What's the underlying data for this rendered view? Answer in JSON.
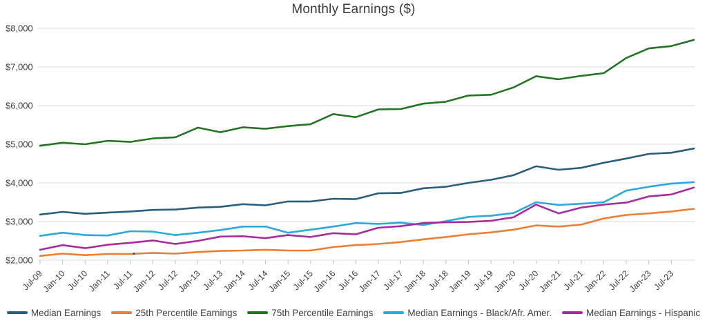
{
  "colors": {
    "background": "#FFFFFF",
    "gridline": "#D9D9D9",
    "tick": "#BFBFBF",
    "axis_text": "#404040",
    "title_text": "#3A3A3A"
  },
  "chart_data": {
    "type": "line",
    "title": "Monthly Earnings ($)",
    "xlabel": "",
    "ylabel": "",
    "ylim": [
      2000,
      8000
    ],
    "grid": "horizontal",
    "legend_position": "bottom",
    "y_ticks": [
      {
        "value": 2000,
        "label": "$2,000"
      },
      {
        "value": 3000,
        "label": "$3,000"
      },
      {
        "value": 4000,
        "label": "$4,000"
      },
      {
        "value": 5000,
        "label": "$5,000"
      },
      {
        "value": 6000,
        "label": "$6,000"
      },
      {
        "value": 7000,
        "label": "$7,000"
      },
      {
        "value": 8000,
        "label": "$8,000"
      }
    ],
    "x_tick_labels": [
      "Jul-09",
      "Jan-10",
      "Jul-10",
      "Jan-11",
      "Jul-11",
      "Jan-12",
      "Jul-12",
      "Jan-13",
      "Jul-13",
      "Jan-14",
      "Jul-14",
      "Jan-15",
      "Jul-15",
      "Jan-16",
      "Jul-16",
      "Jan-17",
      "Jul-17",
      "Jan-18",
      "Jul-18",
      "Jan-19",
      "Jul-19",
      "Jan-20",
      "Jul-20",
      "Jan-21",
      "Jul-21",
      "Jan-22",
      "Jul-22",
      "Jan-23",
      "Jul-23"
    ],
    "x_points": [
      "Jul-09",
      "Jan-10",
      "Jul-10",
      "Jan-11",
      "Jul-11",
      "Jan-12",
      "Jul-12",
      "Jan-13",
      "Jul-13",
      "Jan-14",
      "Jul-14",
      "Jan-15",
      "Jul-15",
      "Jan-16",
      "Jul-16",
      "Jan-17",
      "Jul-17",
      "Jan-18",
      "Jul-18",
      "Jan-19",
      "Jul-19",
      "Jan-20",
      "Jul-20",
      "Jan-21",
      "Jul-21",
      "Jan-22",
      "Jul-22",
      "Jan-23",
      "Jul-23",
      "Nov-23"
    ],
    "series": [
      {
        "name": "Median Earnings",
        "color": "#275E7C",
        "values": [
          3180,
          3250,
          3200,
          3230,
          3260,
          3300,
          3310,
          3360,
          3380,
          3450,
          3420,
          3520,
          3520,
          3590,
          3580,
          3730,
          3740,
          3860,
          3900,
          4000,
          4080,
          4200,
          4430,
          4340,
          4390,
          4520,
          4630,
          4750,
          4780,
          4890
        ]
      },
      {
        "name": "25th Percentile Earnings",
        "color": "#ED7D31",
        "values": [
          2110,
          2170,
          2130,
          2160,
          2160,
          2190,
          2170,
          2210,
          2240,
          2250,
          2270,
          2250,
          2250,
          2340,
          2390,
          2420,
          2470,
          2540,
          2600,
          2670,
          2720,
          2790,
          2900,
          2870,
          2920,
          3080,
          3170,
          3210,
          3260,
          3330
        ]
      },
      {
        "name": "75th Percentile Earnings",
        "color": "#237423",
        "values": [
          4960,
          5040,
          5000,
          5090,
          5060,
          5150,
          5180,
          5430,
          5310,
          5440,
          5400,
          5470,
          5520,
          5780,
          5700,
          5900,
          5910,
          6050,
          6100,
          6260,
          6280,
          6470,
          6760,
          6680,
          6770,
          6840,
          7230,
          7480,
          7540,
          7700
        ]
      },
      {
        "name": "Median Earnings - Black/Afr. Amer.",
        "color": "#2BA9DC",
        "values": [
          2630,
          2710,
          2650,
          2640,
          2750,
          2740,
          2650,
          2710,
          2780,
          2870,
          2870,
          2710,
          2790,
          2870,
          2960,
          2940,
          2970,
          2910,
          3010,
          3120,
          3150,
          3220,
          3500,
          3430,
          3460,
          3500,
          3800,
          3900,
          3980,
          4020
        ]
      },
      {
        "name": "Median Earnings - Hispanic",
        "color": "#A62C9E",
        "values": [
          2270,
          2390,
          2310,
          2400,
          2450,
          2510,
          2420,
          2500,
          2610,
          2620,
          2570,
          2650,
          2600,
          2700,
          2670,
          2840,
          2880,
          2960,
          2980,
          2990,
          3020,
          3110,
          3440,
          3210,
          3360,
          3440,
          3490,
          3650,
          3700,
          3880
        ]
      }
    ],
    "stray_marker": {
      "near_x_label": "Aug-11",
      "value": 2170,
      "color": "#3447C6"
    }
  }
}
